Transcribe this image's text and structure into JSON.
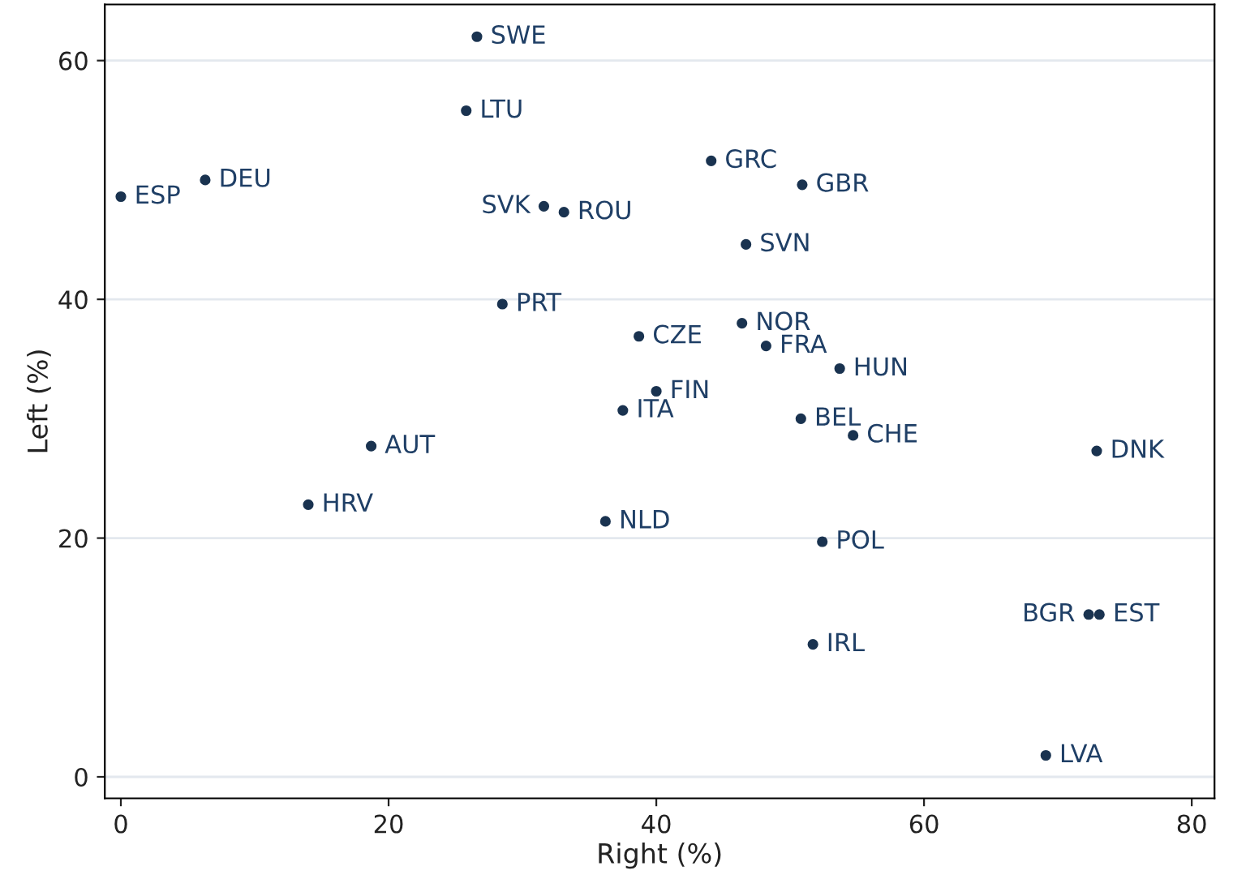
{
  "chart_data": {
    "type": "scatter",
    "xlabel": "Right (%)",
    "ylabel": "Left (%)",
    "xlim": [
      -1.2,
      81.7
    ],
    "ylim": [
      -1.8,
      64.7
    ],
    "xticks": [
      0,
      20,
      40,
      60,
      80
    ],
    "yticks": [
      0,
      20,
      40,
      60
    ],
    "grid": "y",
    "marker": "circle",
    "series": [
      {
        "color": "#1a3350",
        "x": [
          26.6,
          25.8,
          0,
          6.3,
          31.6,
          33.1,
          44.1,
          50.9,
          46.7,
          28.5,
          46.4,
          38.7,
          48.2,
          53.7,
          40.0,
          37.5,
          50.8,
          54.7,
          18.7,
          72.9,
          14.0,
          36.2,
          52.4,
          72.3,
          73.1,
          51.7,
          69.1
        ],
        "values": [
          62.0,
          55.8,
          48.6,
          50.0,
          47.8,
          47.3,
          51.6,
          49.6,
          44.6,
          39.6,
          38.0,
          36.9,
          36.1,
          34.2,
          32.3,
          30.7,
          30.0,
          28.6,
          27.7,
          27.3,
          22.8,
          21.4,
          19.7,
          13.6,
          13.6,
          11.1,
          1.8
        ]
      }
    ],
    "annotations": [
      {
        "text": "SWE",
        "x": 26.6,
        "y": 62.0
      },
      {
        "text": "LTU",
        "x": 25.8,
        "y": 55.8
      },
      {
        "text": "ESP",
        "x": 0,
        "y": 48.6
      },
      {
        "text": "DEU",
        "x": 6.3,
        "y": 50.0
      },
      {
        "text": "SVK",
        "x": 31.6,
        "y": 47.8
      },
      {
        "text": "ROU",
        "x": 33.1,
        "y": 47.3
      },
      {
        "text": "GRC",
        "x": 44.1,
        "y": 51.6
      },
      {
        "text": "GBR",
        "x": 50.9,
        "y": 49.6
      },
      {
        "text": "SVN",
        "x": 46.7,
        "y": 44.6
      },
      {
        "text": "PRT",
        "x": 28.5,
        "y": 39.6
      },
      {
        "text": "NOR",
        "x": 46.4,
        "y": 38.0
      },
      {
        "text": "CZE",
        "x": 38.7,
        "y": 36.9
      },
      {
        "text": "FRA",
        "x": 48.2,
        "y": 36.1
      },
      {
        "text": "HUN",
        "x": 53.7,
        "y": 34.2
      },
      {
        "text": "FIN",
        "x": 40.0,
        "y": 32.3
      },
      {
        "text": "ITA",
        "x": 37.5,
        "y": 30.7
      },
      {
        "text": "BEL",
        "x": 50.8,
        "y": 30.0
      },
      {
        "text": "CHE",
        "x": 54.7,
        "y": 28.6
      },
      {
        "text": "AUT",
        "x": 18.7,
        "y": 27.7
      },
      {
        "text": "DNK",
        "x": 72.9,
        "y": 27.3
      },
      {
        "text": "HRV",
        "x": 14.0,
        "y": 22.8
      },
      {
        "text": "NLD",
        "x": 36.2,
        "y": 21.4
      },
      {
        "text": "POL",
        "x": 52.4,
        "y": 19.7
      },
      {
        "text": "BGR",
        "x": 72.3,
        "y": 13.6
      },
      {
        "text": "EST",
        "x": 73.1,
        "y": 13.6
      },
      {
        "text": "IRL",
        "x": 51.7,
        "y": 11.1
      },
      {
        "text": "LVA",
        "x": 69.1,
        "y": 1.8
      }
    ]
  }
}
